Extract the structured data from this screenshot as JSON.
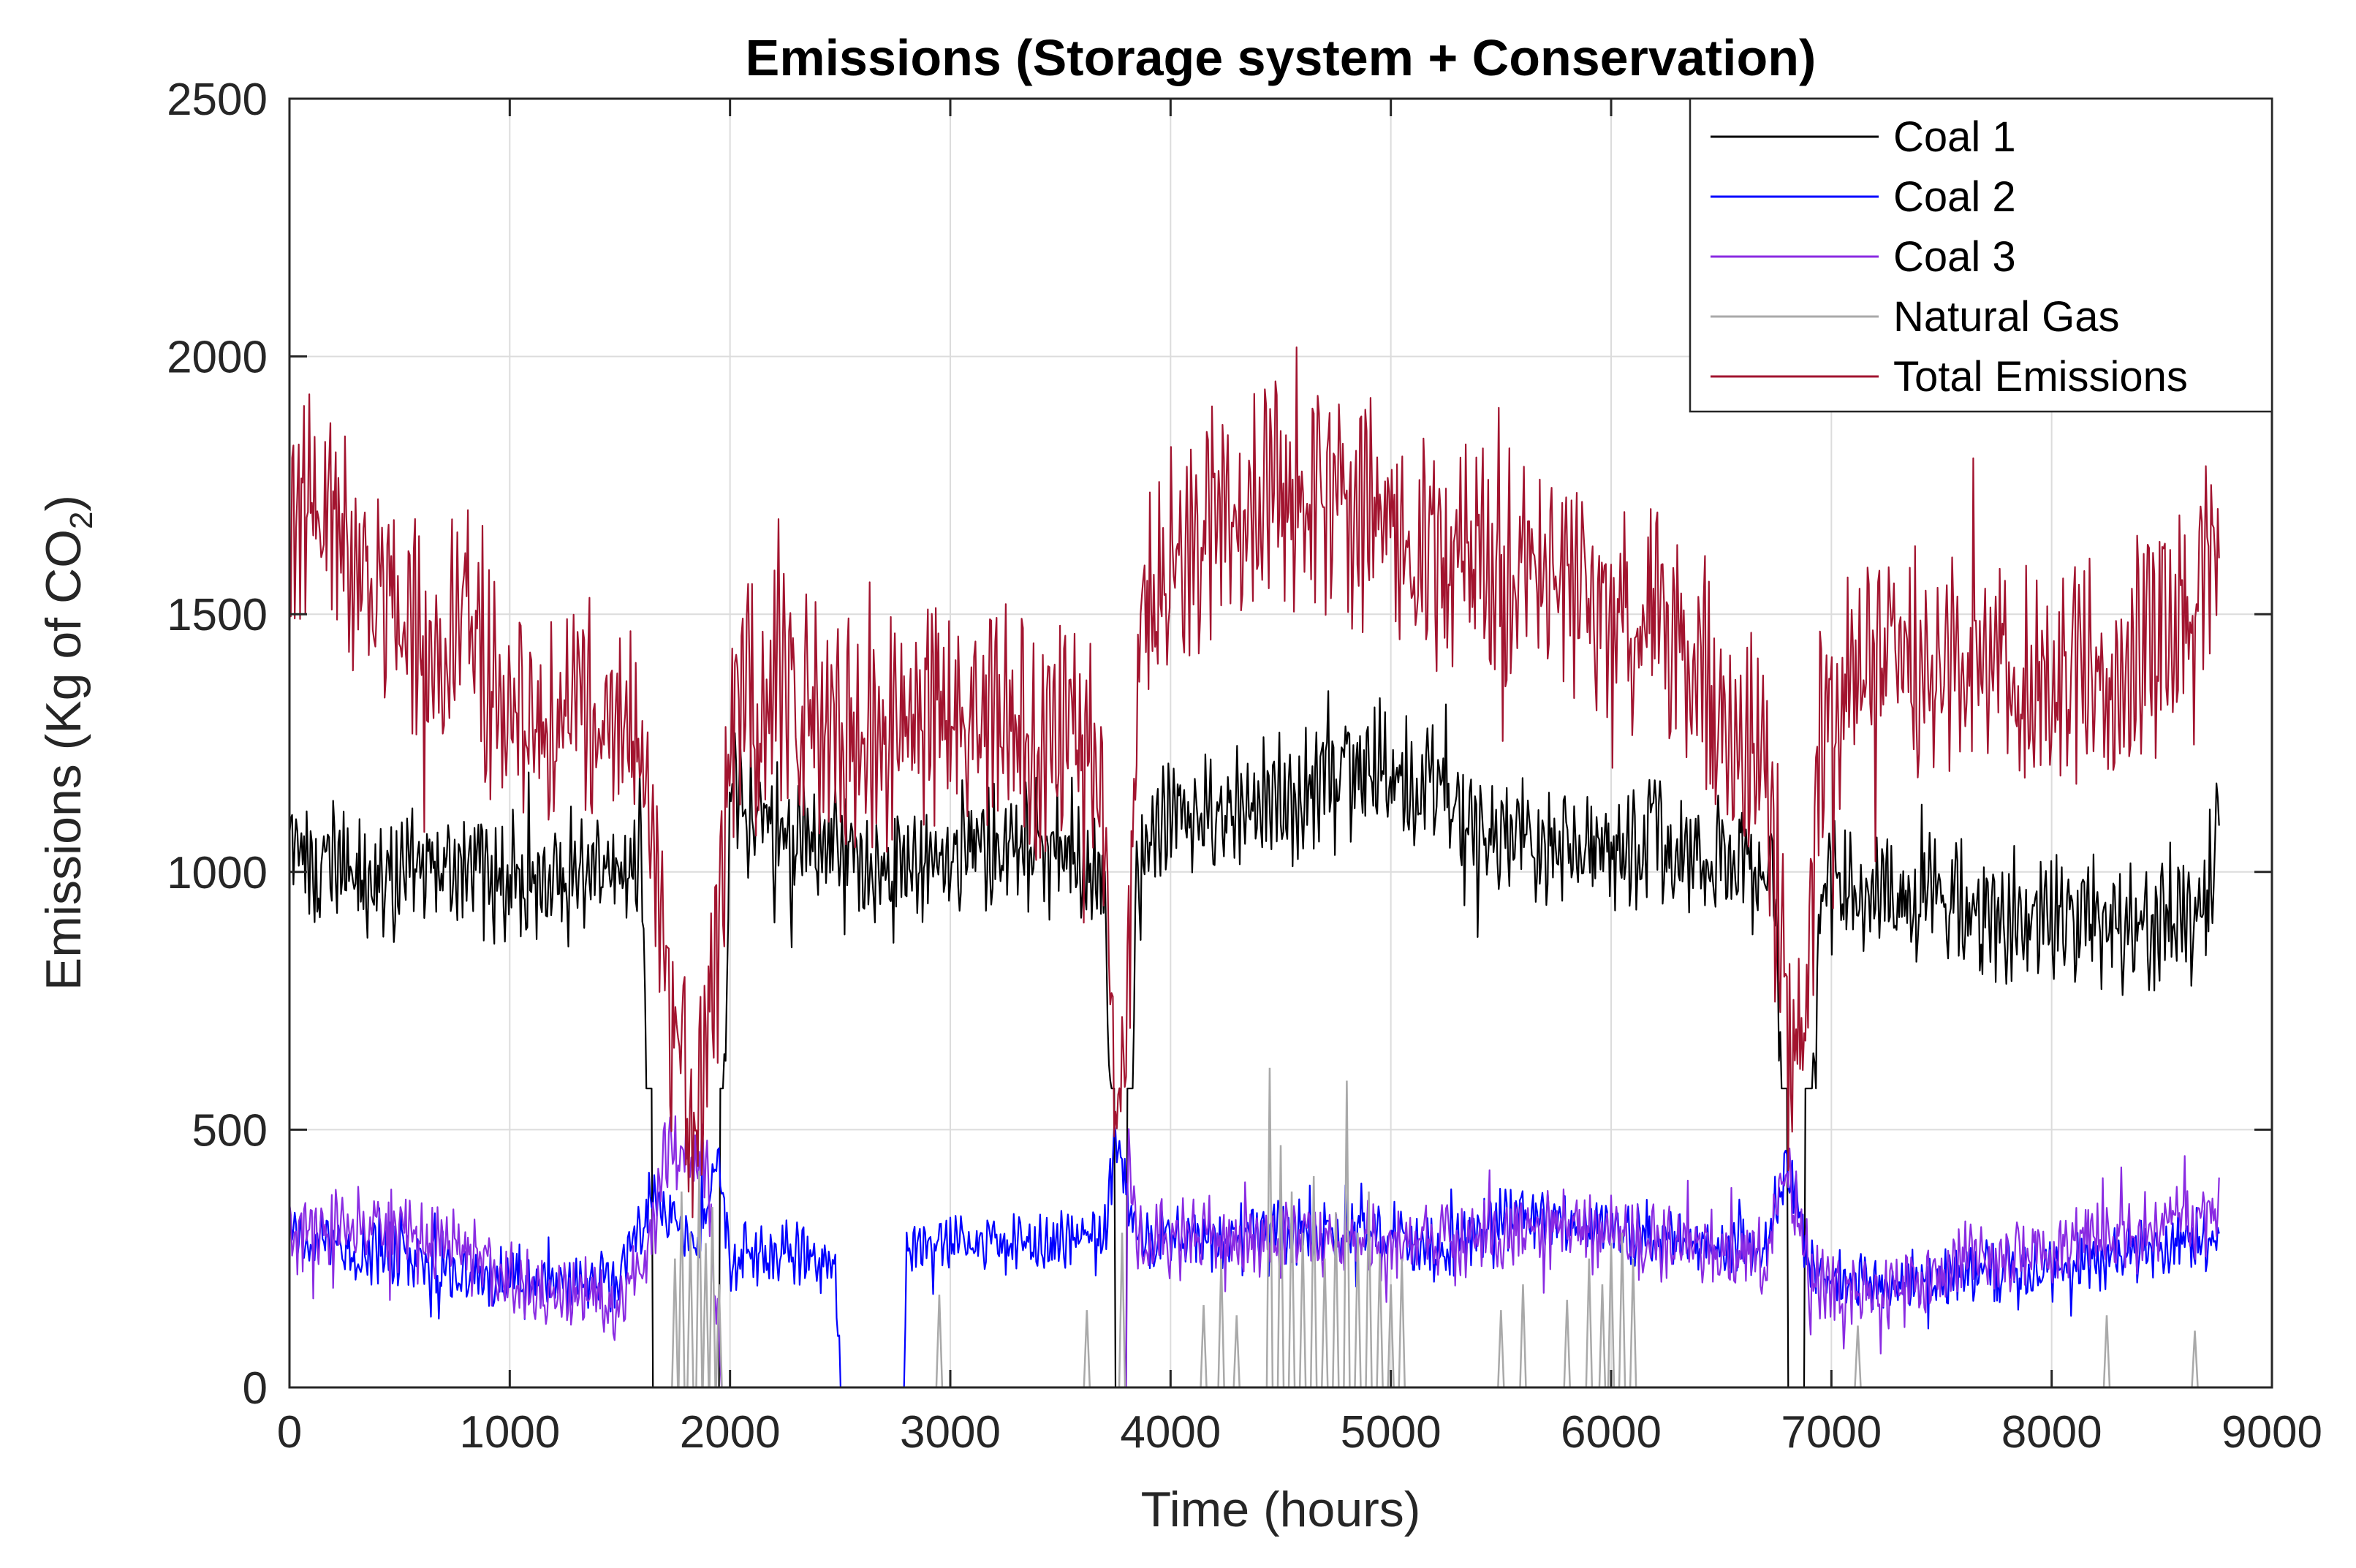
{
  "chart_data": {
    "type": "line",
    "title": "Emissions (Storage system + Conservation)",
    "xlabel": "Time (hours)",
    "ylabel": {
      "prefix": "Emissions (Kg of CO",
      "subscript": "2",
      "suffix": ")"
    },
    "xlim": [
      0,
      9000
    ],
    "ylim": [
      0,
      2500
    ],
    "x_ticks": [
      "0",
      "1000",
      "2000",
      "3000",
      "4000",
      "5000",
      "6000",
      "7000",
      "8000",
      "9000"
    ],
    "y_ticks": [
      "0",
      "500",
      "1000",
      "1500",
      "2000",
      "2500"
    ],
    "grid": true,
    "legend_position": "top-right",
    "series": [
      {
        "name": "Coal 1",
        "color": "#000000",
        "noise": 90,
        "spike_max": 1500,
        "spike_min": 580,
        "knots": [
          [
            0,
            1050
          ],
          [
            200,
            1010
          ],
          [
            500,
            990
          ],
          [
            800,
            1010
          ],
          [
            1100,
            980
          ],
          [
            1400,
            1000
          ],
          [
            1600,
            1020
          ],
          [
            1650,
            0
          ],
          [
            1950,
            0
          ],
          [
            2000,
            1150
          ],
          [
            2300,
            1050
          ],
          [
            2600,
            1020
          ],
          [
            3000,
            1040
          ],
          [
            3400,
            1050
          ],
          [
            3700,
            1000
          ],
          [
            3750,
            0
          ],
          [
            3800,
            0
          ],
          [
            3850,
            1060
          ],
          [
            4200,
            1100
          ],
          [
            4600,
            1150
          ],
          [
            5000,
            1210
          ],
          [
            5400,
            1080
          ],
          [
            5800,
            1060
          ],
          [
            6200,
            1060
          ],
          [
            6600,
            1000
          ],
          [
            6750,
            980
          ],
          [
            6800,
            0
          ],
          [
            6880,
            0
          ],
          [
            6950,
            970
          ],
          [
            7300,
            960
          ],
          [
            7700,
            920
          ],
          [
            8000,
            900
          ],
          [
            8400,
            900
          ],
          [
            8700,
            920
          ],
          [
            8760,
            1150
          ]
        ]
      },
      {
        "name": "Coal 2",
        "color": "#0000ff",
        "noise": 45,
        "spike_max": 530,
        "spike_min": 0,
        "knots": [
          [
            0,
            300
          ],
          [
            300,
            260
          ],
          [
            600,
            250
          ],
          [
            900,
            210
          ],
          [
            1200,
            200
          ],
          [
            1500,
            200
          ],
          [
            1650,
            380
          ],
          [
            1850,
            280
          ],
          [
            1950,
            460
          ],
          [
            2000,
            250
          ],
          [
            2300,
            260
          ],
          [
            2480,
            240
          ],
          [
            2500,
            0
          ],
          [
            2790,
            0
          ],
          [
            2800,
            270
          ],
          [
            3100,
            280
          ],
          [
            3400,
            270
          ],
          [
            3700,
            300
          ],
          [
            3750,
            480
          ],
          [
            3850,
            280
          ],
          [
            4200,
            290
          ],
          [
            4600,
            300
          ],
          [
            5000,
            300
          ],
          [
            5200,
            270
          ],
          [
            5600,
            340
          ],
          [
            5900,
            310
          ],
          [
            6200,
            290
          ],
          [
            6500,
            270
          ],
          [
            6700,
            260
          ],
          [
            6800,
            450
          ],
          [
            6900,
            230
          ],
          [
            7300,
            200
          ],
          [
            7700,
            230
          ],
          [
            8000,
            230
          ],
          [
            8400,
            270
          ],
          [
            8760,
            290
          ]
        ]
      },
      {
        "name": "Coal 3",
        "color": "#8a2be2",
        "noise": 55,
        "spike_max": 620,
        "spike_min": 0,
        "knots": [
          [
            0,
            300
          ],
          [
            300,
            310
          ],
          [
            600,
            300
          ],
          [
            800,
            260
          ],
          [
            1000,
            200
          ],
          [
            1200,
            180
          ],
          [
            1500,
            170
          ],
          [
            1600,
            220
          ],
          [
            1700,
            450
          ],
          [
            1900,
            430
          ],
          [
            1960,
            0
          ],
          [
            2000,
            0
          ],
          [
            2480,
            0
          ],
          [
            2800,
            0
          ],
          [
            3800,
            0
          ],
          [
            3750,
            500
          ],
          [
            3850,
            290
          ],
          [
            4200,
            290
          ],
          [
            4600,
            290
          ],
          [
            5000,
            280
          ],
          [
            5300,
            280
          ],
          [
            5600,
            310
          ],
          [
            5900,
            300
          ],
          [
            6200,
            280
          ],
          [
            6500,
            260
          ],
          [
            6700,
            250
          ],
          [
            6800,
            430
          ],
          [
            6900,
            200
          ],
          [
            7300,
            180
          ],
          [
            7600,
            250
          ],
          [
            8000,
            270
          ],
          [
            8400,
            300
          ],
          [
            8760,
            340
          ]
        ]
      },
      {
        "name": "Natural Gas",
        "color": "#a9a9a9",
        "noise": 0,
        "spike_max": 0,
        "spike_min": 0,
        "peaks": [
          [
            1750,
            250
          ],
          [
            1780,
            380
          ],
          [
            1820,
            300
          ],
          [
            1860,
            420
          ],
          [
            1890,
            280
          ],
          [
            1920,
            350
          ],
          [
            1950,
            200
          ],
          [
            2950,
            180
          ],
          [
            3620,
            150
          ],
          [
            3780,
            300
          ],
          [
            4150,
            160
          ],
          [
            4230,
            250
          ],
          [
            4300,
            140
          ],
          [
            4450,
            620
          ],
          [
            4500,
            470
          ],
          [
            4550,
            380
          ],
          [
            4600,
            300
          ],
          [
            4650,
            410
          ],
          [
            4700,
            250
          ],
          [
            4750,
            340
          ],
          [
            4800,
            595
          ],
          [
            4850,
            300
          ],
          [
            4900,
            380
          ],
          [
            4950,
            260
          ],
          [
            5000,
            200
          ],
          [
            5050,
            250
          ],
          [
            5500,
            150
          ],
          [
            5600,
            200
          ],
          [
            5800,
            170
          ],
          [
            5900,
            250
          ],
          [
            5960,
            200
          ],
          [
            6000,
            280
          ],
          [
            6050,
            300
          ],
          [
            6100,
            250
          ],
          [
            7120,
            120
          ],
          [
            8250,
            140
          ],
          [
            8650,
            110
          ]
        ]
      },
      {
        "name": "Total Emissions",
        "color": "#a2142f",
        "noise": 170,
        "spike_max": 2440,
        "spike_min": 330,
        "knots": [
          [
            0,
            1600
          ],
          [
            100,
            1750
          ],
          [
            300,
            1620
          ],
          [
            500,
            1480
          ],
          [
            700,
            1420
          ],
          [
            800,
            1600
          ],
          [
            900,
            1380
          ],
          [
            1100,
            1300
          ],
          [
            1300,
            1320
          ],
          [
            1500,
            1320
          ],
          [
            1600,
            1250
          ],
          [
            1650,
            1000
          ],
          [
            1750,
            650
          ],
          [
            1850,
            600
          ],
          [
            1950,
            820
          ],
          [
            2000,
            1300
          ],
          [
            2200,
            1380
          ],
          [
            2400,
            1300
          ],
          [
            2600,
            1250
          ],
          [
            2800,
            1300
          ],
          [
            3000,
            1320
          ],
          [
            3200,
            1320
          ],
          [
            3400,
            1250
          ],
          [
            3600,
            1250
          ],
          [
            3700,
            1150
          ],
          [
            3750,
            500
          ],
          [
            3800,
            600
          ],
          [
            3850,
            1450
          ],
          [
            4000,
            1600
          ],
          [
            4200,
            1680
          ],
          [
            4400,
            1700
          ],
          [
            4600,
            1750
          ],
          [
            4800,
            1720
          ],
          [
            5000,
            1650
          ],
          [
            5200,
            1600
          ],
          [
            5400,
            1620
          ],
          [
            5600,
            1580
          ],
          [
            5800,
            1570
          ],
          [
            6000,
            1520
          ],
          [
            6200,
            1480
          ],
          [
            6400,
            1420
          ],
          [
            6600,
            1300
          ],
          [
            6700,
            1200
          ],
          [
            6800,
            700
          ],
          [
            6880,
            600
          ],
          [
            6950,
            1300
          ],
          [
            7200,
            1400
          ],
          [
            7500,
            1400
          ],
          [
            7800,
            1400
          ],
          [
            8000,
            1350
          ],
          [
            8200,
            1380
          ],
          [
            8400,
            1420
          ],
          [
            8600,
            1500
          ],
          [
            8700,
            1600
          ],
          [
            8760,
            1550
          ]
        ]
      }
    ]
  }
}
